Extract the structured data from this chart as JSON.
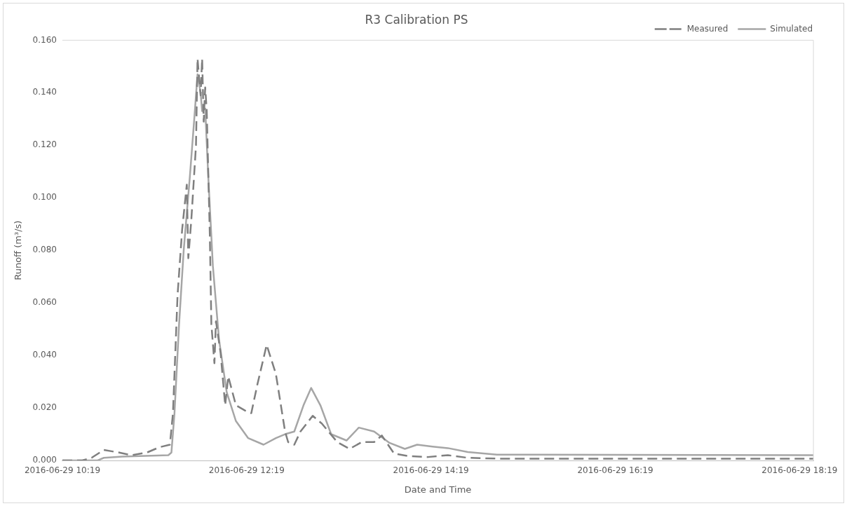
{
  "chart_data": {
    "type": "line",
    "title": "R3 Calibration PS",
    "xlabel": "Date and Time",
    "ylabel": "Runoff (m³/s)",
    "legend": "top right",
    "xlim": [
      "2016-06-29T10:19",
      "2016-06-29T18:28"
    ],
    "xticks": [
      {
        "value": "2016-06-29T10:19",
        "label": "2016-06-29 10:19"
      },
      {
        "value": "2016-06-29T12:19",
        "label": "2016-06-29 12:19"
      },
      {
        "value": "2016-06-29T14:19",
        "label": "2016-06-29 14:19"
      },
      {
        "value": "2016-06-29T16:19",
        "label": "2016-06-29 16:19"
      },
      {
        "value": "2016-06-29T18:19",
        "label": "2016-06-29 18:19"
      }
    ],
    "ylim": [
      0,
      0.16
    ],
    "yticks": [
      {
        "value": 0,
        "label": "0.000"
      },
      {
        "value": 0.02,
        "label": "0.020"
      },
      {
        "value": 0.04,
        "label": "0.040"
      },
      {
        "value": 0.06,
        "label": "0.060"
      },
      {
        "value": 0.08,
        "label": "0.080"
      },
      {
        "value": 0.1,
        "label": "0.100"
      },
      {
        "value": 0.12,
        "label": "0.120"
      },
      {
        "value": 0.14,
        "label": "0.140"
      },
      {
        "value": 0.16,
        "label": "0.160"
      }
    ],
    "series": [
      {
        "name": "Measured",
        "color": "#7f7f7f",
        "line_style": "dashed",
        "x": [
          "2016-06-29T10:19",
          "2016-06-29T10:32",
          "2016-06-29T10:38",
          "2016-06-29T10:46",
          "2016-06-29T10:56",
          "2016-06-29T11:04",
          "2016-06-29T11:14",
          "2016-06-29T11:22",
          "2016-06-29T11:29",
          "2016-06-29T11:31",
          "2016-06-29T11:34",
          "2016-06-29T11:37",
          "2016-06-29T11:40",
          "2016-06-29T11:41",
          "2016-06-29T11:43",
          "2016-06-29T11:46",
          "2016-06-29T11:47",
          "2016-06-29T11:49",
          "2016-06-29T11:50",
          "2016-06-29T11:51",
          "2016-06-29T11:52",
          "2016-06-29T11:53",
          "2016-06-29T11:55",
          "2016-06-29T11:56",
          "2016-06-29T11:58",
          "2016-06-29T11:59",
          "2016-06-29T12:02",
          "2016-06-29T12:05",
          "2016-06-29T12:07",
          "2016-06-29T12:12",
          "2016-06-29T12:18",
          "2016-06-29T12:22",
          "2016-06-29T12:26",
          "2016-06-29T12:32",
          "2016-06-29T12:38",
          "2016-06-29T12:44",
          "2016-06-29T12:46",
          "2016-06-29T12:50",
          "2016-06-29T12:54",
          "2016-06-29T13:02",
          "2016-06-29T13:08",
          "2016-06-29T13:18",
          "2016-06-29T13:26",
          "2016-06-29T13:34",
          "2016-06-29T13:42",
          "2016-06-29T13:47",
          "2016-06-29T13:55",
          "2016-06-29T14:04",
          "2016-06-29T14:17",
          "2016-06-29T14:30",
          "2016-06-29T14:43",
          "2016-06-29T15:02",
          "2016-06-29T18:28"
        ],
        "values": [
          0,
          0,
          0.001,
          0.004,
          0.003,
          0.002,
          0.003,
          0.005,
          0.006,
          0.018,
          0.063,
          0.088,
          0.105,
          0.077,
          0.092,
          0.12,
          0.153,
          0.139,
          0.153,
          0.129,
          0.142,
          0.133,
          0.086,
          0.052,
          0.037,
          0.053,
          0.041,
          0.021,
          0.032,
          0.021,
          0.019,
          0.018,
          0.029,
          0.044,
          0.033,
          0.011,
          0.007,
          0.006,
          0.011,
          0.017,
          0.014,
          0.007,
          0.0044,
          0.007,
          0.007,
          0.0095,
          0.0026,
          0.0017,
          0.0013,
          0.002,
          0.001,
          0.0007,
          0.0007
        ]
      },
      {
        "name": "Simulated",
        "color": "#a6a6a6",
        "line_style": "solid",
        "x": [
          "2016-06-29T10:19",
          "2016-06-29T10:42",
          "2016-06-29T10:46",
          "2016-06-29T10:58",
          "2016-06-29T11:28",
          "2016-06-29T11:30",
          "2016-06-29T11:32",
          "2016-06-29T11:35",
          "2016-06-29T11:38",
          "2016-06-29T11:42",
          "2016-06-29T11:45",
          "2016-06-29T11:47",
          "2016-06-29T11:49",
          "2016-06-29T11:50",
          "2016-06-29T11:52",
          "2016-06-29T11:54",
          "2016-06-29T11:57",
          "2016-06-29T12:01",
          "2016-06-29T12:06",
          "2016-06-29T12:12",
          "2016-06-29T12:20",
          "2016-06-29T12:30",
          "2016-06-29T12:38",
          "2016-06-29T12:44",
          "2016-06-29T12:50",
          "2016-06-29T12:56",
          "2016-06-29T13:01",
          "2016-06-29T13:07",
          "2016-06-29T13:14",
          "2016-06-29T13:24",
          "2016-06-29T13:32",
          "2016-06-29T13:42",
          "2016-06-29T13:52",
          "2016-06-29T14:02",
          "2016-06-29T14:10",
          "2016-06-29T14:20",
          "2016-06-29T14:30",
          "2016-06-29T14:43",
          "2016-06-29T15:02",
          "2016-06-29T18:28"
        ],
        "values": [
          0,
          0,
          0.001,
          0.0015,
          0.002,
          0.003,
          0.018,
          0.052,
          0.08,
          0.108,
          0.131,
          0.147,
          0.14,
          0.133,
          0.134,
          0.108,
          0.074,
          0.046,
          0.026,
          0.015,
          0.0085,
          0.006,
          0.0085,
          0.01,
          0.011,
          0.021,
          0.0276,
          0.021,
          0.01,
          0.0076,
          0.0125,
          0.011,
          0.0067,
          0.0044,
          0.006,
          0.0053,
          0.0047,
          0.0032,
          0.0022,
          0.002
        ]
      }
    ]
  }
}
